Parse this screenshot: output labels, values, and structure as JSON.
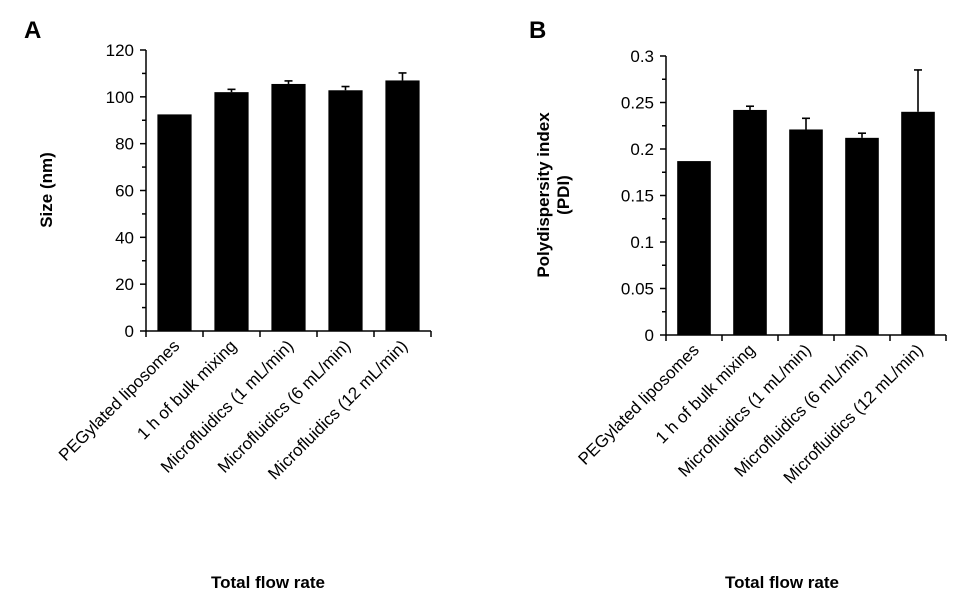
{
  "chart_data": [
    {
      "panel": "A",
      "type": "bar",
      "xlabel": "Total flow rate",
      "ylabel": "Size (nm)",
      "ylim": [
        0,
        120
      ],
      "yticks": [
        "0",
        "20",
        "40",
        "60",
        "80",
        "100",
        "120"
      ],
      "categories": [
        "PEGylated liposomes",
        "1 h of bulk mixing",
        "Microfluidics (1 mL/min)",
        "Microfluidics (6 mL/min)",
        "Microfluidics (12 mL/min)"
      ],
      "values": [
        92.5,
        102,
        105.5,
        102.8,
        107
      ],
      "errors": [
        0,
        1.2,
        1.3,
        1.6,
        3.2
      ],
      "grid": false,
      "legend": "none"
    },
    {
      "panel": "B",
      "type": "bar",
      "xlabel": "Total flow rate",
      "ylabel": "Polydispersity index (PDI)",
      "ylabel_lines": [
        "Polydispersity index",
        "(PDI)"
      ],
      "ylim": [
        0,
        0.3
      ],
      "yticks": [
        "0",
        "0.05",
        "0.1",
        "0.15",
        "0.2",
        "0.25",
        "0.3"
      ],
      "categories": [
        "PEGylated liposomes",
        "1 h of bulk mixing",
        "Microfluidics (1 mL/min)",
        "Microfluidics (6 mL/min)",
        "Microfluidics (12 mL/min)"
      ],
      "values": [
        0.187,
        0.242,
        0.221,
        0.212,
        0.24
      ],
      "errors": [
        0,
        0.004,
        0.012,
        0.005,
        0.045
      ],
      "grid": false,
      "legend": "none"
    }
  ]
}
